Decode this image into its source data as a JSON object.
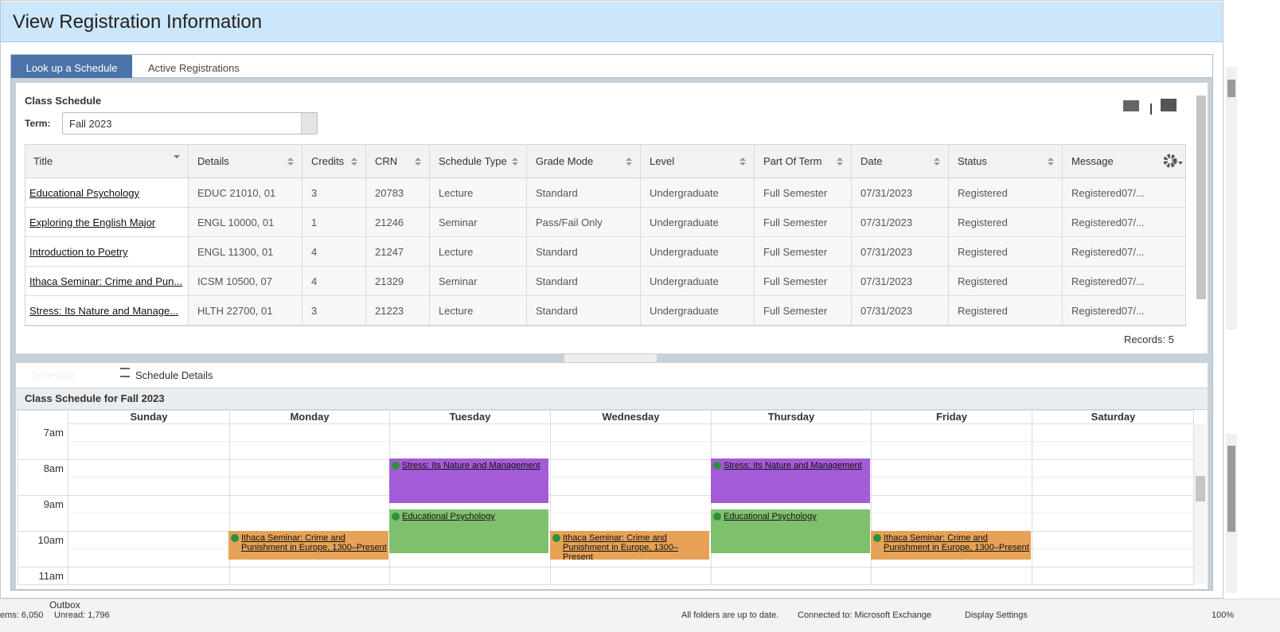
{
  "header": {
    "title": "View Registration Information"
  },
  "tabs": [
    "Look up a Schedule",
    "Active Registrations"
  ],
  "schedule_panel": {
    "title": "Class Schedule",
    "term_label": "Term:",
    "term_value": "Fall 2023",
    "table": {
      "columns": [
        "Title",
        "Details",
        "Credits",
        "CRN",
        "Schedule Type",
        "Grade Mode",
        "Level",
        "Part Of Term",
        "Date",
        "Status",
        "Message"
      ],
      "rows": [
        [
          "Educational Psychology",
          "EDUC 21010, 01",
          "3",
          "20783",
          "Lecture",
          "Standard",
          "Undergraduate",
          "Full Semester",
          "07/31/2023",
          "Registered",
          "Registered07/..."
        ],
        [
          "Exploring the English Major",
          "ENGL 10000, 01",
          "1",
          "21246",
          "Seminar",
          "Pass/Fail Only",
          "Undergraduate",
          "Full Semester",
          "07/31/2023",
          "Registered",
          "Registered07/..."
        ],
        [
          "Introduction to Poetry",
          "ENGL 11300, 01",
          "4",
          "21247",
          "Lecture",
          "Standard",
          "Undergraduate",
          "Full Semester",
          "07/31/2023",
          "Registered",
          "Registered07/..."
        ],
        [
          "Ithaca Seminar: Crime and Pun...",
          "ICSM 10500, 07",
          "4",
          "21329",
          "Seminar",
          "Standard",
          "Undergraduate",
          "Full Semester",
          "07/31/2023",
          "Registered",
          "Registered07/..."
        ],
        [
          "Stress: Its Nature and Manage...",
          "HLTH 22700, 01",
          "3",
          "21223",
          "Lecture",
          "Standard",
          "Undergraduate",
          "Full Semester",
          "07/31/2023",
          "Registered",
          "Registered07/..."
        ]
      ]
    },
    "records": "Records: 5"
  },
  "lower_tabs": [
    "Schedule",
    "Schedule Details"
  ],
  "calendar": {
    "title": "Class Schedule for Fall 2023",
    "days": [
      "Sunday",
      "Monday",
      "Tuesday",
      "Wednesday",
      "Thursday",
      "Friday",
      "Saturday"
    ],
    "times": [
      "7am",
      "8am",
      "9am",
      "10am",
      "11am"
    ],
    "events": [
      {
        "label": "Stress: Its Nature and Management"
      },
      {
        "label": "Stress: Its Nature and Management"
      },
      {
        "label": "Educational Psychology"
      },
      {
        "label": "Educational Psychology"
      },
      {
        "label": "Ithaca Seminar: Crime and Punishment in Europe, 1300–Present"
      },
      {
        "label": "Ithaca Seminar: Crime and Punishment in Europe, 1300–Present"
      },
      {
        "label": "Ithaca Seminar: Crime and Punishment in Europe, 1300–Present"
      }
    ]
  },
  "status_bar": {
    "folder": "Outbox",
    "items": [
      "ems: 6,050",
      "Unread: 1,796",
      "All folders are up to date.",
      "Connected to: Microsoft Exchange",
      "Display Settings",
      "100%"
    ]
  }
}
